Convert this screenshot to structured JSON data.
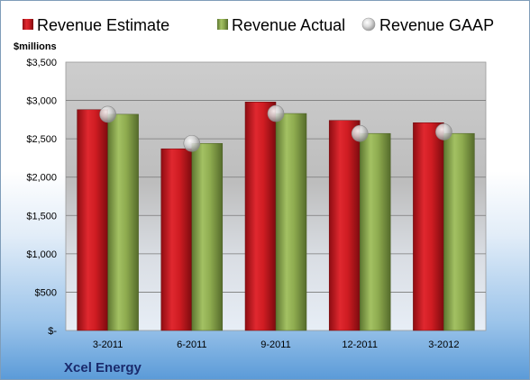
{
  "chart_data": {
    "type": "bar",
    "unit_label": "$millions",
    "footer_label": "Xcel Energy",
    "categories": [
      "3-2011",
      "6-2011",
      "9-2011",
      "12-2011",
      "3-2012"
    ],
    "series": [
      {
        "name": "Revenue Estimate",
        "type": "bar",
        "color": "#c8161d",
        "values": [
          2880,
          2370,
          2980,
          2740,
          2710
        ]
      },
      {
        "name": "Revenue Actual",
        "type": "bar",
        "color": "#8aa84a",
        "values": [
          2820,
          2440,
          2830,
          2570,
          2570
        ]
      },
      {
        "name": "Revenue GAAP",
        "type": "scatter",
        "color": "#c9c9c9",
        "values": [
          2820,
          2440,
          2830,
          2570,
          2590
        ]
      }
    ],
    "y_ticks": [
      "$-",
      "$500",
      "$1,000",
      "$1,500",
      "$2,000",
      "$2,500",
      "$3,000",
      "$3,500"
    ],
    "ylim": [
      0,
      3500
    ],
    "grid": true,
    "legend_position": "top"
  }
}
